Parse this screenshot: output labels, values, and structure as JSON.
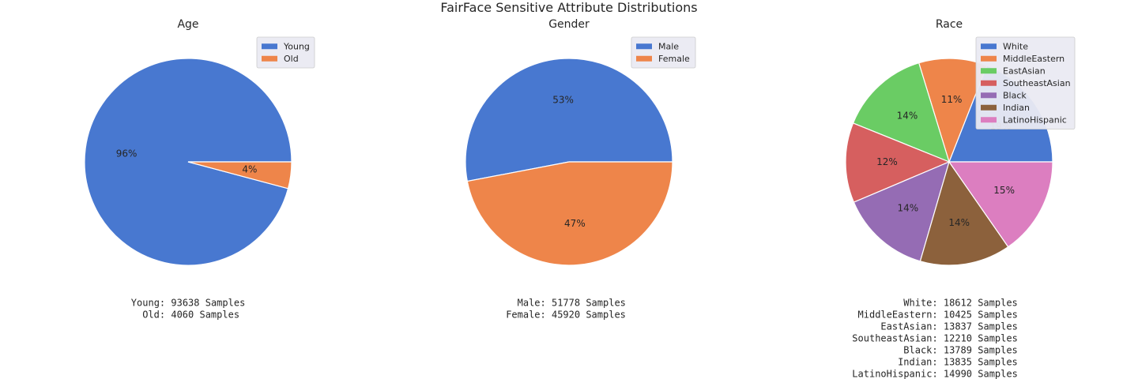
{
  "figure": {
    "title": "FairFace Sensitive Attribute Distributions"
  },
  "chart_data": [
    {
      "type": "pie",
      "title": "Age",
      "categories": [
        "Young",
        "Old"
      ],
      "values": [
        93638,
        4060
      ],
      "percent_labels": [
        "96%",
        "4%"
      ],
      "colors": [
        "#4878d0",
        "#ee854a"
      ],
      "legend_position": "upper right",
      "counts_text": [
        "Young: 93638 Samples",
        "Old: 4060 Samples"
      ]
    },
    {
      "type": "pie",
      "title": "Gender",
      "categories": [
        "Male",
        "Female"
      ],
      "values": [
        51778,
        45920
      ],
      "percent_labels": [
        "53%",
        "47%"
      ],
      "colors": [
        "#4878d0",
        "#ee854a"
      ],
      "legend_position": "upper right",
      "counts_text": [
        "Male: 51778 Samples",
        "Female: 45920 Samples"
      ]
    },
    {
      "type": "pie",
      "title": "Race",
      "categories": [
        "White",
        "MiddleEastern",
        "EastAsian",
        "SoutheastAsian",
        "Black",
        "Indian",
        "LatinoHispanic"
      ],
      "values": [
        18612,
        10425,
        13837,
        12210,
        13789,
        13835,
        14990
      ],
      "percent_labels": [
        "19%",
        "11%",
        "14%",
        "12%",
        "14%",
        "14%",
        "15%"
      ],
      "colors": [
        "#4878d0",
        "#ee854a",
        "#6acc64",
        "#d65f5f",
        "#956cb4",
        "#8c613c",
        "#dc7ec0"
      ],
      "legend_position": "upper right",
      "counts_text": [
        "White: 18612 Samples",
        "MiddleEastern: 10425 Samples",
        "EastAsian: 13837 Samples",
        "SoutheastAsian: 12210 Samples",
        "Black: 13789 Samples",
        "Indian: 13835 Samples",
        "LatinoHispanic: 14990 Samples"
      ]
    }
  ]
}
